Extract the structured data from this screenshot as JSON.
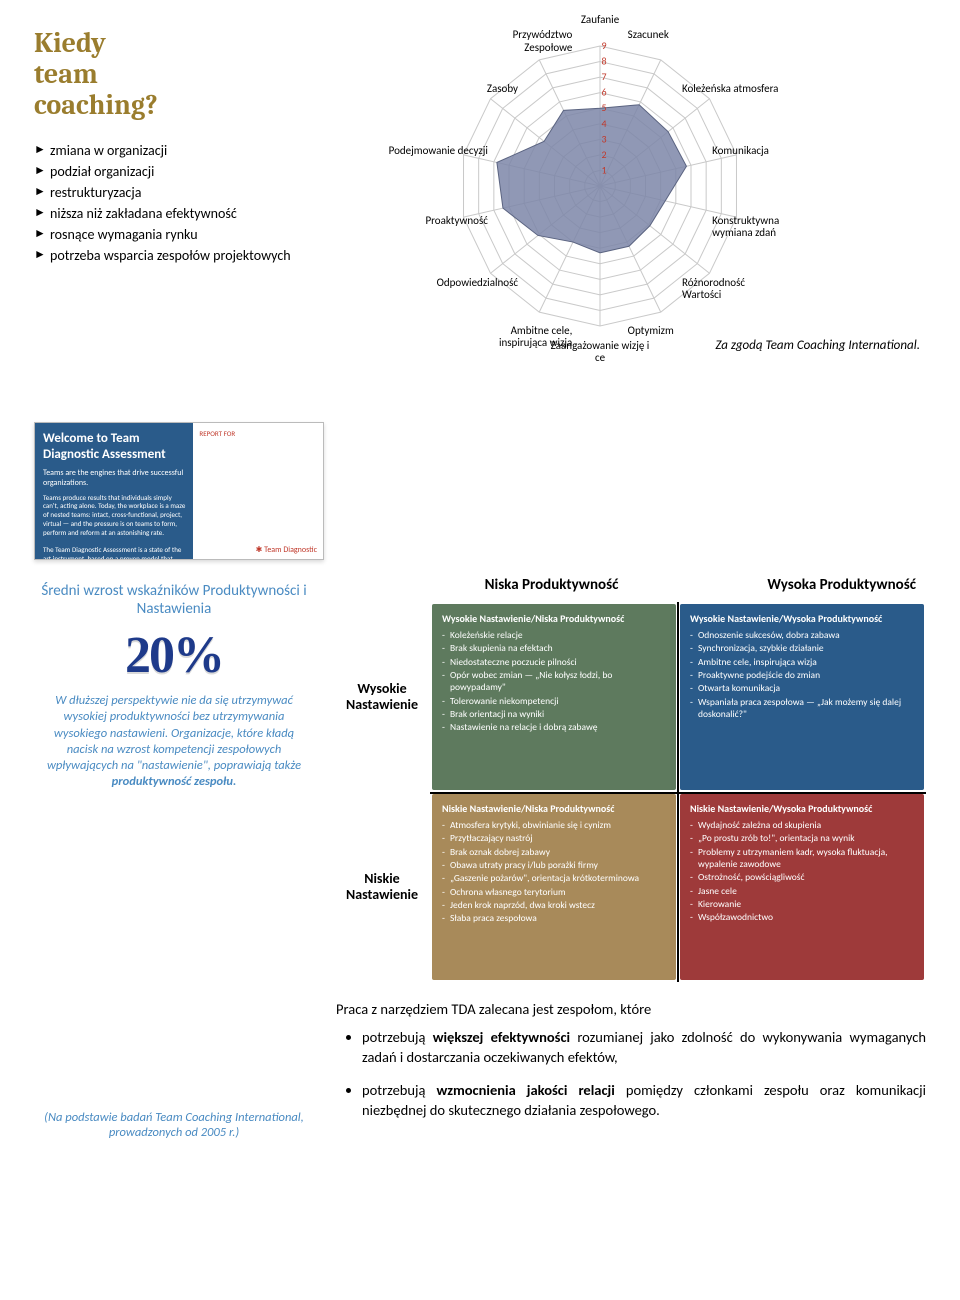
{
  "title": "Kiedy\nteam\ncoaching?",
  "bullets": [
    "zmiana w organizacji",
    "podział organizacji",
    "restrukturyzacja",
    "niższa niż zakładana efektywność",
    "rosnące wymagania rynku",
    "potrzeba wsparcia zespołów projektowych"
  ],
  "radar": {
    "axes": [
      "Zaufanie",
      "Szacunek",
      "Koleżeńska atmosfera",
      "Komunikacja",
      "Konstruktywna wymiana zdań",
      "Różnorodność Wartości",
      "Optymizm",
      "Zaangażowanie wizję i ce",
      "Ambitne cele, inspirująca wizja",
      "Odpowiedzialność",
      "Proaktywność",
      "Podejmowanie decyzji",
      "Zasoby",
      "Przywództwo Zespołowe"
    ],
    "rings": 9,
    "values": [
      5.0,
      5.8,
      5.6,
      5.7,
      4.3,
      4.1,
      4.3,
      4.3,
      4.0,
      5.1,
      6.4,
      6.8,
      4.6,
      5.4
    ],
    "fill_color": "#7d86a8",
    "fill_opacity": 0.85,
    "grid_color": "#c9c9c9",
    "axis_number_color": "#c0392b",
    "bg": "#ffffff",
    "size": 300
  },
  "credit": "Za zgodą Team Coaching International.",
  "tda": {
    "title": "Welcome to Team Diagnostic Assessment",
    "subtitle": "Teams are the engines that drive successful organizations.",
    "body": "Teams produce results that individuals simply can't, acting alone. Today, the workplace is a maze of nested teams: intact, cross-functional, project, virtual — and the pressure is on teams to form, perform and reform at an astonishing rate.\n\nThe Team Diagnostic Assessment is a state of the art instrument, based on a proven model that defines the necessary strengths for high-performing, sustainable, inspired teams.",
    "report_for": "REPORT FOR",
    "logo": "Team Diagnostic"
  },
  "stats": {
    "heading": "Średni wzrost wskaźników Produktywności i Nastawienia",
    "value": "20%",
    "body_pre": "W dłuższej perspektywie nie da się utrzymywać wysokiej produktywności bez utrzymywania wysokiego nastawieni. Organizacje, które kładą nacisk na wzrost kompetencji zespołowych wpływających na \"nastawienie\", poprawiają także ",
    "body_bold": "produktywność zespołu.",
    "cite": "(Na podstawie badań Team Coaching International, prowadzonych od 2005 r.)"
  },
  "quad": {
    "col_heads": [
      "Niska Produktywność",
      "Wysoka Produktywność"
    ],
    "row_heads": [
      "Wysokie Nastawienie",
      "Niskie Nastawienie"
    ],
    "cells": [
      {
        "title": "Wysokie Nastawienie/Niska Produktywność",
        "items": [
          "Koleżeńskie relacje",
          "Brak skupienia na efektach",
          "Niedostateczne poczucie pilności",
          "Opór wobec zmian — „Nie kołysz łodzi, bo powypadamy\"",
          "Tolerowanie niekompetencji",
          "Brak orientacji na wyniki",
          "Nastawienie na relacje i dobrą zabawę"
        ]
      },
      {
        "title": "Wysokie Nastawienie/Wysoka Produktywność",
        "items": [
          "Odnoszenie sukcesów, dobra zabawa",
          "Synchronizacja, szybkie działanie",
          "Ambitne cele, inspirująca wizja",
          "Proaktywne podejście do zmian",
          "Otwarta komunikacja",
          "Wspaniała praca zespołowa — „Jak możemy się dalej doskonalić?\""
        ]
      },
      {
        "title": "Niskie Nastawienie/Niska Produktywność",
        "items": [
          "Atmosfera krytyki, obwinianie się i cynizm",
          "Przytłaczający nastrój",
          "Brak oznak dobrej zabawy",
          "Obawa utraty pracy i/lub porażki firmy",
          "„Gaszenie pożarów\", orientacja krótkoterminowa",
          "Ochrona własnego terytorium",
          "Jeden krok naprzód, dwa kroki wstecz",
          "Słaba praca zespołowa"
        ]
      },
      {
        "title": "Niskie Nastawienie/Wysoka Produktywność",
        "items": [
          "Wydajność zależna od skupienia",
          "„Po prostu zrób to!\", orientacja na wynik",
          "Problemy z utrzymaniem kadr, wysoka fluktuacja, wypalenie zawodowe",
          "Ostrożność, powściągliwość",
          "Jasne cele",
          "Kierowanie",
          "Współzawodnictwo"
        ]
      }
    ]
  },
  "recs": {
    "intro": "Praca z narzędziem TDA zalecana jest zespołom, które",
    "items": [
      {
        "pre": "potrzebują ",
        "bold": "większej efektywności",
        "post": " rozumianej jako zdolność do wykonywania wymaganych zadań i dostarczania oczekiwanych efektów,"
      },
      {
        "pre": "potrzebują ",
        "bold": "wzmocnienia jakości relacji",
        "post": " pomiędzy członkami zespołu oraz komunikacji niezbędnej do skutecznego działania zespołowego."
      }
    ]
  }
}
